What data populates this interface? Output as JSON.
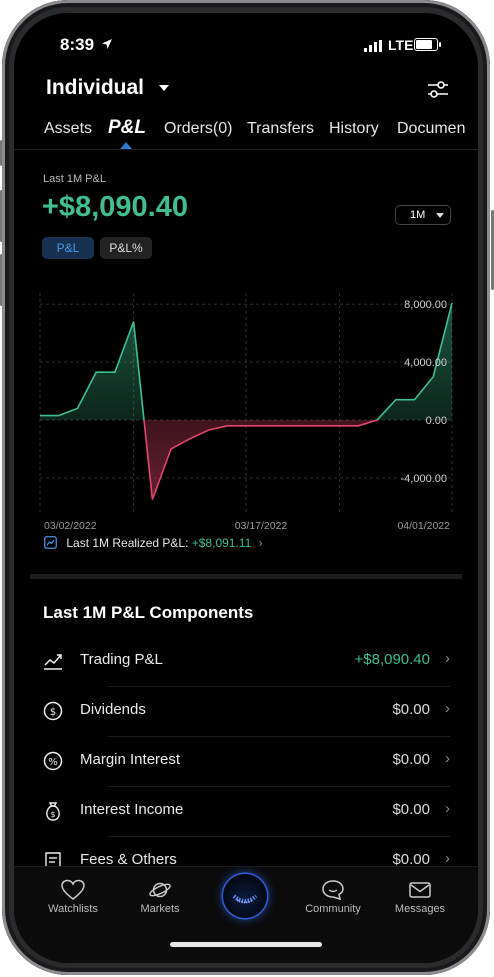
{
  "status": {
    "time": "8:39",
    "network": "LTE"
  },
  "header": {
    "account": "Individual"
  },
  "tabs": [
    {
      "label": "Assets"
    },
    {
      "label": "P&L"
    },
    {
      "label": "Orders(0)"
    },
    {
      "label": "Transfers"
    },
    {
      "label": "History"
    },
    {
      "label": "Documen"
    }
  ],
  "summary": {
    "caption": "Last 1M P&L",
    "value": "+$8,090.40",
    "period": "1M",
    "toggle_pl": "P&L",
    "toggle_plpct": "P&L%"
  },
  "colors": {
    "positive": "#3fbf8f",
    "negative": "#e2466b",
    "accent": "#2f7bd1"
  },
  "chart_data": {
    "type": "area",
    "x": [
      "03/02/2022",
      "03/03/2022",
      "03/04/2022",
      "03/07/2022",
      "03/08/2022",
      "03/09/2022",
      "03/10/2022",
      "03/11/2022",
      "03/14/2022",
      "03/15/2022",
      "03/16/2022",
      "03/17/2022",
      "03/18/2022",
      "03/21/2022",
      "03/22/2022",
      "03/23/2022",
      "03/24/2022",
      "03/25/2022",
      "03/28/2022",
      "03/29/2022",
      "03/30/2022",
      "03/31/2022",
      "04/01/2022"
    ],
    "values": [
      300,
      300,
      800,
      3300,
      3300,
      6800,
      -5500,
      -2000,
      -1300,
      -700,
      -400,
      -400,
      -400,
      -400,
      -400,
      -400,
      -400,
      -400,
      0,
      1400,
      1400,
      3000,
      8090.4
    ],
    "y_ticks": [
      "8,000.00",
      "4,000.00",
      "0.00",
      "-4,000.00"
    ],
    "x_ticks": [
      "03/02/2022",
      "03/17/2022",
      "04/01/2022"
    ],
    "ylim": [
      -6500,
      8500
    ],
    "grid": true
  },
  "realized": {
    "label": "Last 1M Realized P&L:",
    "value": "+$8,091.11"
  },
  "components": {
    "title": "Last 1M P&L Components",
    "rows": [
      {
        "label": "Trading P&L",
        "value": "+$8,090.40",
        "icon": "trend-icon"
      },
      {
        "label": "Dividends",
        "value": "$0.00",
        "icon": "dividend-icon"
      },
      {
        "label": "Margin Interest",
        "value": "$0.00",
        "icon": "percent-icon"
      },
      {
        "label": "Interest Income",
        "value": "$0.00",
        "icon": "money-bag-icon"
      },
      {
        "label": "Fees & Others",
        "value": "$0.00",
        "icon": "receipt-icon"
      }
    ]
  },
  "bottom_nav": [
    {
      "label": "Watchlists",
      "icon": "heart-icon"
    },
    {
      "label": "Markets",
      "icon": "planet-icon"
    },
    {
      "label": "",
      "icon": "home-logo-icon"
    },
    {
      "label": "Community",
      "icon": "chat-icon"
    },
    {
      "label": "Messages",
      "icon": "mail-icon"
    }
  ]
}
